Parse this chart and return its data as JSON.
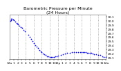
{
  "title": "Barometric Pressure per Minute",
  "subtitle": "(24 Hours)",
  "dot_color": "#0000ff",
  "dot_size": 1.5,
  "background_color": "#ffffff",
  "grid_color": "#888888",
  "title_fontsize": 4.5,
  "tick_fontsize": 3.2,
  "ylim": [
    29.05,
    30.15
  ],
  "xlim": [
    0,
    1440
  ],
  "x_ticks": [
    0,
    60,
    120,
    180,
    240,
    300,
    360,
    420,
    480,
    540,
    600,
    660,
    720,
    780,
    840,
    900,
    960,
    1020,
    1080,
    1140,
    1200,
    1260,
    1320,
    1380,
    1440
  ],
  "x_tick_labels": [
    "12a",
    "1",
    "2",
    "3",
    "4",
    "5",
    "6",
    "7",
    "8",
    "9",
    "10",
    "11",
    "12p",
    "1",
    "2",
    "3",
    "4",
    "5",
    "6",
    "7",
    "8",
    "9",
    "10",
    "11",
    "12a"
  ],
  "y_ticks": [
    29.1,
    29.2,
    29.3,
    29.4,
    29.5,
    29.6,
    29.7,
    29.8,
    29.9,
    30.0,
    30.1
  ],
  "vgrid_positions": [
    120,
    240,
    360,
    480,
    600,
    720,
    840,
    960,
    1080,
    1200,
    1320
  ],
  "data_x": [
    5,
    15,
    25,
    35,
    50,
    65,
    80,
    100,
    110,
    125,
    140,
    165,
    185,
    210,
    230,
    280,
    300,
    320,
    340,
    360,
    380,
    400,
    420,
    440,
    460,
    480,
    500,
    520,
    540,
    560,
    580,
    600,
    620,
    640,
    660,
    680,
    700,
    720,
    760,
    800,
    830,
    860,
    900,
    930,
    960,
    990,
    1020,
    1050,
    1080,
    1100,
    1120,
    1140,
    1160,
    1180,
    1200,
    1220,
    1240,
    1260,
    1290,
    1320,
    1350,
    1380,
    1410,
    1440
  ],
  "data_y": [
    30.0,
    30.02,
    30.04,
    30.05,
    30.03,
    30.01,
    29.98,
    29.95,
    29.93,
    29.91,
    29.88,
    29.85,
    29.82,
    29.78,
    29.74,
    29.65,
    29.6,
    29.55,
    29.5,
    29.45,
    29.4,
    29.36,
    29.32,
    29.28,
    29.25,
    29.22,
    29.19,
    29.17,
    29.15,
    29.13,
    29.12,
    29.11,
    29.1,
    29.1,
    29.11,
    29.12,
    29.13,
    29.14,
    29.16,
    29.18,
    29.19,
    29.2,
    29.21,
    29.22,
    29.22,
    29.23,
    29.23,
    29.23,
    29.23,
    29.23,
    29.22,
    29.22,
    29.21,
    29.21,
    29.2,
    29.2,
    29.19,
    29.18,
    29.17,
    29.16,
    29.15,
    29.13,
    29.11,
    29.1
  ]
}
